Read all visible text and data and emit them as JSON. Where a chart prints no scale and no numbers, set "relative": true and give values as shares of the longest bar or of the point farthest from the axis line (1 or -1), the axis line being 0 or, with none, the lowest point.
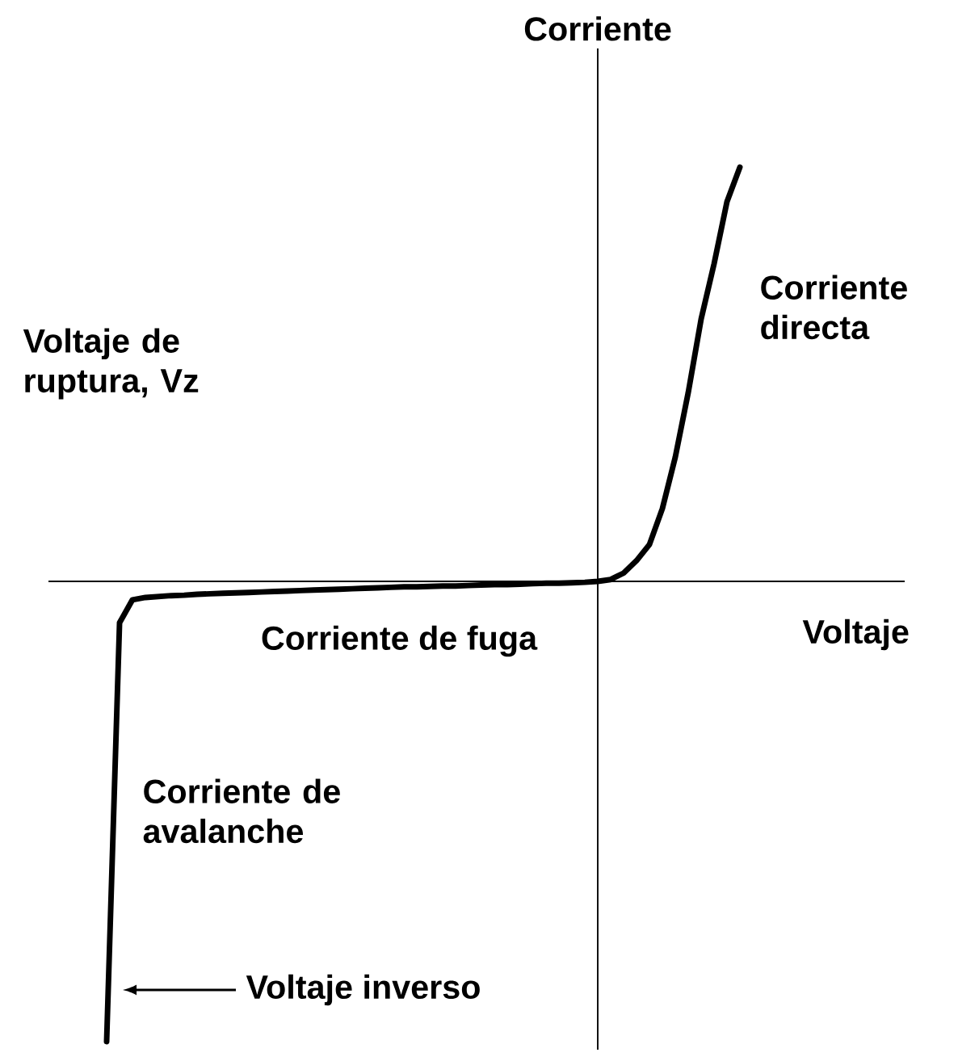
{
  "chart_data": {
    "type": "line",
    "relative": true,
    "xlabel": "Voltaje",
    "ylabel": "Corriente",
    "color": "#000000",
    "categories": [
      null,
      null,
      null,
      null,
      null,
      null,
      null,
      null,
      null,
      null,
      null,
      null,
      null,
      null,
      null,
      null,
      null,
      null,
      null,
      null,
      null,
      null,
      null,
      null,
      null,
      null,
      null,
      null,
      null,
      null,
      null,
      null,
      null,
      null,
      null,
      null,
      null,
      null,
      null,
      null,
      null,
      null,
      null,
      null,
      null,
      null,
      null,
      null,
      null,
      null
    ],
    "values": [
      -1.0,
      -0.09,
      -0.04,
      -0.035,
      -0.033,
      -0.031,
      -0.03,
      -0.028,
      -0.027,
      -0.026,
      -0.025,
      -0.024,
      -0.023,
      -0.022,
      -0.021,
      -0.02,
      -0.019,
      -0.018,
      -0.017,
      -0.016,
      -0.015,
      -0.014,
      -0.013,
      -0.012,
      -0.012,
      -0.011,
      -0.01,
      -0.01,
      -0.009,
      -0.008,
      -0.007,
      -0.007,
      -0.006,
      -0.005,
      -0.004,
      -0.004,
      -0.003,
      -0.002,
      0.0,
      0.004,
      0.018,
      0.045,
      0.08,
      0.158,
      0.27,
      0.41,
      0.57,
      0.69,
      0.825,
      0.9
    ],
    "annotations": [
      "Voltaje de ruptura, Vz",
      "Corriente de fuga",
      "Corriente directa",
      "Corriente de avalanche",
      "Voltaje inverso"
    ]
  }
}
